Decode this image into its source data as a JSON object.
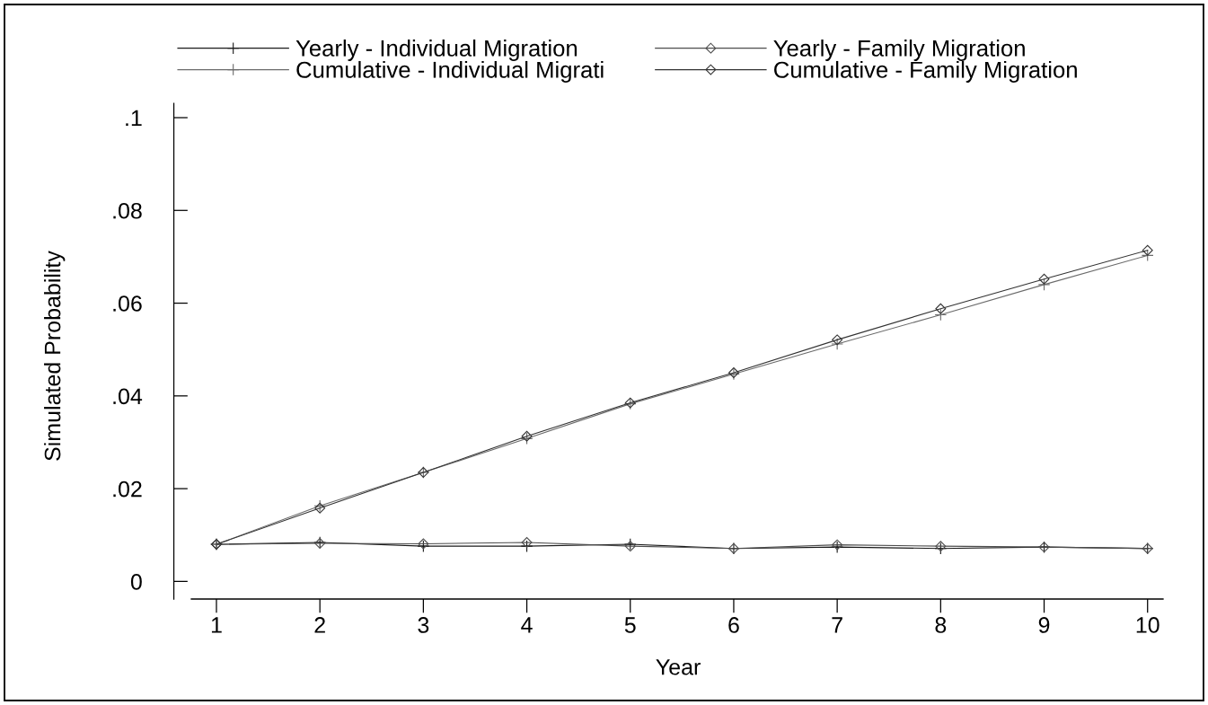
{
  "chart_data": {
    "type": "line",
    "xlabel": "Year",
    "ylabel": "Simulated Probability",
    "legend": "top",
    "grid": false,
    "line_style": "solid",
    "x": [
      1,
      2,
      3,
      4,
      5,
      6,
      7,
      8,
      9,
      10
    ],
    "xlim": [
      0.757,
      10.15
    ],
    "xticks": [
      1,
      2,
      3,
      4,
      5,
      6,
      7,
      8,
      9,
      10
    ],
    "ylim": [
      -0.0038,
      0.1031
    ],
    "yticks": [
      0,
      {
        "value": 0.02,
        "label": ".02"
      },
      {
        "value": 0.04,
        "label": ".04"
      },
      {
        "value": 0.06,
        "label": ".06"
      },
      {
        "value": 0.08,
        "label": ".08"
      },
      {
        "value": 0.1,
        "label": ".1"
      }
    ],
    "series": [
      {
        "name": "Yearly - Individual Migration",
        "color": "#1a1a1a",
        "marker": "cross",
        "values": [
          0.008,
          0.0084,
          0.0076,
          0.0076,
          0.008,
          0.0071,
          0.0074,
          0.0071,
          0.0074,
          0.0071
        ]
      },
      {
        "name": "Yearly - Family Migration",
        "color": "#4d4d4d",
        "marker": "diamond",
        "values": [
          0.008,
          0.0082,
          0.0081,
          0.0084,
          0.0076,
          0.0071,
          0.0079,
          0.0076,
          0.0074,
          0.0071
        ]
      },
      {
        "name": "Cumulative - Individual Migrati",
        "color": "#6b6b6b",
        "marker": "cross",
        "values": [
          0.008,
          0.0163,
          0.0235,
          0.0308,
          0.0383,
          0.0447,
          0.0512,
          0.0575,
          0.064,
          0.0703
        ]
      },
      {
        "name": "Cumulative - Family Migration",
        "color": "#333333",
        "marker": "diamond",
        "values": [
          0.008,
          0.0158,
          0.0235,
          0.0313,
          0.0385,
          0.045,
          0.0521,
          0.0588,
          0.0652,
          0.0714
        ]
      }
    ]
  }
}
